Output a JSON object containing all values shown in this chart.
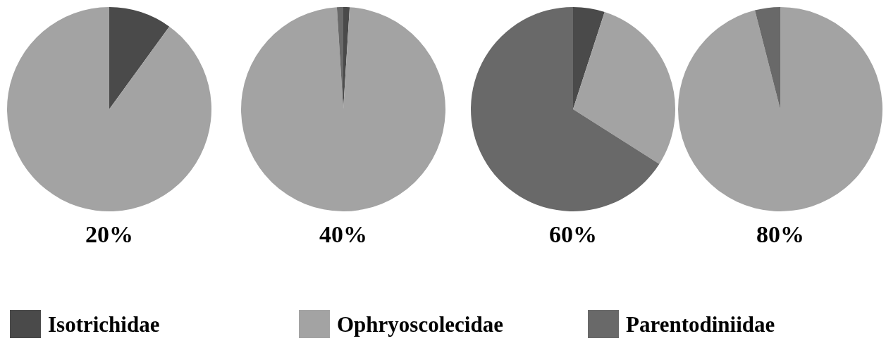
{
  "chart_data": {
    "type": "pie",
    "categories": [
      "Isotrichidae",
      "Ophryoscolecidae",
      "Parentodiniidae"
    ],
    "colors": [
      "#4a4a4a",
      "#a3a3a3",
      "#696969"
    ],
    "legend": "bottom",
    "series": [
      {
        "name": "20%",
        "values": [
          10,
          90,
          0
        ]
      },
      {
        "name": "40%",
        "values": [
          1,
          98,
          1
        ]
      },
      {
        "name": "60%",
        "values": [
          5,
          29,
          66
        ]
      },
      {
        "name": "80%",
        "values": [
          0,
          96,
          4
        ]
      }
    ]
  }
}
